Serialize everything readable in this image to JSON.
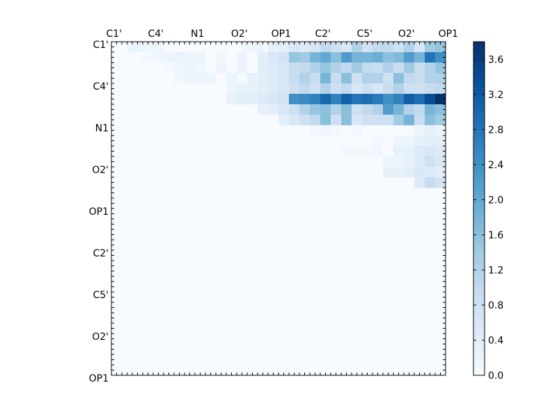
{
  "chart_data": {
    "type": "heatmap",
    "title": "",
    "xlabel": "",
    "ylabel": "",
    "colormap": "Blues",
    "matrix_size": 64,
    "tick_interval": 8,
    "tick_labels": [
      "C1'",
      "C4'",
      "N1",
      "O2'",
      "OP1",
      "C2'",
      "C5'",
      "O2'",
      "OP1"
    ],
    "colorbar": {
      "min": 0.0,
      "max": 3.8,
      "ticks": [
        "0.0",
        "0.4",
        "0.8",
        "1.2",
        "1.6",
        "2.0",
        "2.4",
        "2.8",
        "3.2",
        "3.6"
      ]
    },
    "values_by_row": [
      {
        "row": 0,
        "cells": [
          [
            3,
            0.2
          ],
          [
            4,
            0.2
          ],
          [
            6,
            0.15
          ],
          [
            8,
            0.2
          ],
          [
            25,
            0.15
          ],
          [
            27,
            0.2
          ],
          [
            30,
            0.3
          ],
          [
            32,
            0.4
          ],
          [
            34,
            0.6
          ],
          [
            36,
            0.5
          ],
          [
            38,
            0.6
          ],
          [
            40,
            1.0
          ],
          [
            42,
            0.8
          ],
          [
            44,
            0.6
          ],
          [
            46,
            1.2
          ],
          [
            48,
            0.7
          ],
          [
            50,
            1.0
          ],
          [
            52,
            1.0
          ],
          [
            54,
            0.8
          ],
          [
            56,
            1.2
          ],
          [
            58,
            0.6
          ],
          [
            60,
            1.4
          ],
          [
            62,
            1.5
          ]
        ]
      },
      {
        "row": 2,
        "cells": [
          [
            6,
            0.1
          ],
          [
            8,
            0.15
          ],
          [
            10,
            0.2
          ],
          [
            12,
            0.25
          ],
          [
            14,
            0.2
          ],
          [
            16,
            0.2
          ],
          [
            20,
            0.15
          ],
          [
            24,
            0.2
          ],
          [
            28,
            0.4
          ],
          [
            30,
            0.6
          ],
          [
            32,
            0.7
          ],
          [
            34,
            1.5
          ],
          [
            36,
            1.4
          ],
          [
            38,
            1.8
          ],
          [
            40,
            2.0
          ],
          [
            42,
            1.6
          ],
          [
            44,
            2.2
          ],
          [
            46,
            1.8
          ],
          [
            48,
            1.8
          ],
          [
            50,
            1.9
          ],
          [
            52,
            1.6
          ],
          [
            54,
            1.7
          ],
          [
            56,
            2.2
          ],
          [
            58,
            1.8
          ],
          [
            60,
            2.8
          ],
          [
            62,
            2.4
          ]
        ]
      },
      {
        "row": 4,
        "cells": [
          [
            10,
            0.1
          ],
          [
            12,
            0.15
          ],
          [
            14,
            0.2
          ],
          [
            16,
            0.15
          ],
          [
            20,
            0.2
          ],
          [
            24,
            0.2
          ],
          [
            28,
            0.4
          ],
          [
            30,
            0.5
          ],
          [
            32,
            0.6
          ],
          [
            34,
            0.9
          ],
          [
            36,
            1.0
          ],
          [
            38,
            1.2
          ],
          [
            40,
            1.5
          ],
          [
            42,
            1.2
          ],
          [
            44,
            1.0
          ],
          [
            46,
            1.4
          ],
          [
            48,
            1.0
          ],
          [
            50,
            0.9
          ],
          [
            52,
            1.2
          ],
          [
            54,
            0.9
          ],
          [
            56,
            1.4
          ],
          [
            58,
            0.9
          ],
          [
            60,
            1.2
          ],
          [
            62,
            1.5
          ]
        ]
      },
      {
        "row": 6,
        "cells": [
          [
            12,
            0.15
          ],
          [
            14,
            0.2
          ],
          [
            16,
            0.2
          ],
          [
            18,
            0.2
          ],
          [
            22,
            0.2
          ],
          [
            26,
            0.3
          ],
          [
            28,
            0.4
          ],
          [
            30,
            0.5
          ],
          [
            32,
            0.6
          ],
          [
            34,
            0.9
          ],
          [
            36,
            1.2
          ],
          [
            38,
            0.9
          ],
          [
            40,
            1.8
          ],
          [
            42,
            0.9
          ],
          [
            44,
            1.6
          ],
          [
            46,
            0.8
          ],
          [
            48,
            1.2
          ],
          [
            50,
            1.2
          ],
          [
            52,
            0.8
          ],
          [
            54,
            1.6
          ],
          [
            56,
            1.0
          ],
          [
            58,
            0.9
          ],
          [
            60,
            1.2
          ],
          [
            62,
            1.2
          ]
        ]
      },
      {
        "row": 8,
        "cells": [
          [
            22,
            0.2
          ],
          [
            24,
            0.3
          ],
          [
            26,
            0.3
          ],
          [
            28,
            0.4
          ],
          [
            30,
            0.5
          ],
          [
            32,
            0.6
          ],
          [
            34,
            0.8
          ],
          [
            36,
            1.0
          ],
          [
            38,
            0.8
          ],
          [
            40,
            1.2
          ],
          [
            42,
            0.8
          ],
          [
            44,
            1.0
          ],
          [
            46,
            0.6
          ],
          [
            48,
            0.8
          ],
          [
            50,
            0.6
          ],
          [
            52,
            0.9
          ],
          [
            54,
            1.2
          ],
          [
            56,
            0.8
          ],
          [
            58,
            0.8
          ],
          [
            60,
            0.9
          ],
          [
            62,
            1.0
          ]
        ]
      },
      {
        "row": 10,
        "cells": [
          [
            22,
            0.3
          ],
          [
            24,
            0.4
          ],
          [
            26,
            0.4
          ],
          [
            28,
            0.5
          ],
          [
            30,
            0.6
          ],
          [
            32,
            0.7
          ],
          [
            34,
            2.4
          ],
          [
            36,
            2.5
          ],
          [
            38,
            2.6
          ],
          [
            40,
            3.0
          ],
          [
            42,
            2.6
          ],
          [
            44,
            3.1
          ],
          [
            46,
            2.8
          ],
          [
            48,
            2.9
          ],
          [
            50,
            2.7
          ],
          [
            52,
            2.4
          ],
          [
            54,
            2.6
          ],
          [
            56,
            3.1
          ],
          [
            58,
            2.9
          ],
          [
            60,
            3.4
          ],
          [
            62,
            3.8
          ]
        ]
      },
      {
        "row": 12,
        "cells": [
          [
            28,
            0.3
          ],
          [
            30,
            0.4
          ],
          [
            32,
            0.6
          ],
          [
            34,
            0.8
          ],
          [
            36,
            1.2
          ],
          [
            38,
            1.5
          ],
          [
            40,
            1.6
          ],
          [
            42,
            1.2
          ],
          [
            44,
            1.6
          ],
          [
            46,
            0.8
          ],
          [
            48,
            1.0
          ],
          [
            50,
            1.2
          ],
          [
            52,
            2.2
          ],
          [
            54,
            1.8
          ],
          [
            56,
            1.2
          ],
          [
            58,
            1.0
          ],
          [
            60,
            1.8
          ],
          [
            62,
            1.6
          ]
        ]
      },
      {
        "row": 14,
        "cells": [
          [
            32,
            0.4
          ],
          [
            34,
            0.6
          ],
          [
            36,
            0.8
          ],
          [
            38,
            1.0
          ],
          [
            40,
            1.6
          ],
          [
            42,
            0.8
          ],
          [
            44,
            1.6
          ],
          [
            46,
            0.6
          ],
          [
            48,
            0.8
          ],
          [
            50,
            0.8
          ],
          [
            52,
            0.8
          ],
          [
            54,
            1.4
          ],
          [
            56,
            1.8
          ],
          [
            58,
            0.9
          ],
          [
            60,
            1.6
          ],
          [
            62,
            1.4
          ]
        ]
      },
      {
        "row": 16,
        "cells": [
          [
            38,
            0.1
          ],
          [
            40,
            0.15
          ],
          [
            42,
            0.1
          ],
          [
            46,
            0.1
          ],
          [
            58,
            0.2
          ],
          [
            60,
            0.3
          ],
          [
            62,
            0.2
          ]
        ]
      },
      {
        "row": 18,
        "cells": [
          [
            50,
            0.1
          ],
          [
            54,
            0.2
          ],
          [
            56,
            0.2
          ],
          [
            58,
            0.3
          ],
          [
            60,
            0.4
          ],
          [
            62,
            0.4
          ]
        ]
      },
      {
        "row": 20,
        "cells": [
          [
            44,
            0.1
          ],
          [
            46,
            0.15
          ],
          [
            48,
            0.1
          ],
          [
            50,
            0.15
          ],
          [
            54,
            0.3
          ],
          [
            56,
            0.3
          ],
          [
            58,
            0.5
          ],
          [
            60,
            0.6
          ],
          [
            62,
            0.5
          ]
        ]
      },
      {
        "row": 22,
        "cells": [
          [
            52,
            0.2
          ],
          [
            54,
            0.2
          ],
          [
            56,
            0.3
          ],
          [
            58,
            0.5
          ],
          [
            60,
            0.8
          ],
          [
            62,
            0.6
          ]
        ]
      },
      {
        "row": 24,
        "cells": [
          [
            52,
            0.3
          ],
          [
            54,
            0.3
          ],
          [
            56,
            0.4
          ],
          [
            58,
            0.6
          ],
          [
            60,
            0.5
          ],
          [
            62,
            0.4
          ]
        ]
      },
      {
        "row": 26,
        "cells": [
          [
            58,
            0.5
          ],
          [
            60,
            0.9
          ],
          [
            62,
            0.7
          ]
        ]
      }
    ]
  }
}
